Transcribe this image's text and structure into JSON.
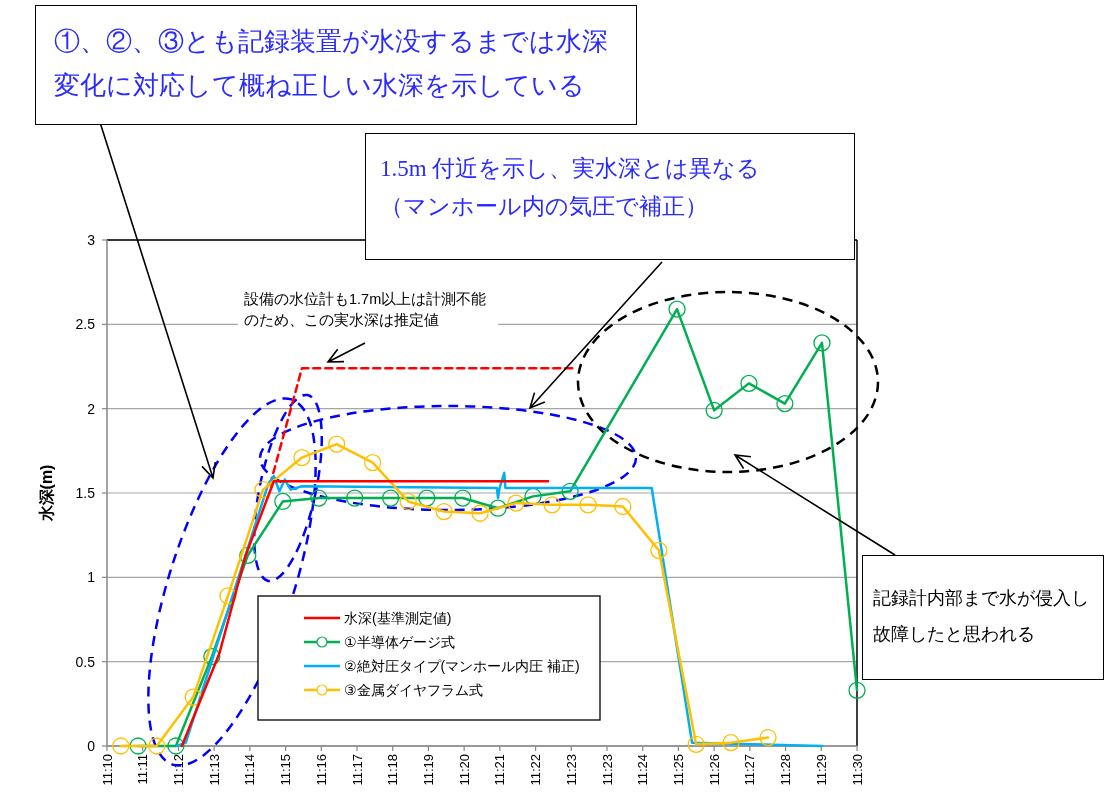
{
  "chart_data": {
    "type": "line",
    "ylabel": "水深(m)",
    "xlim": [
      11.1743,
      11.4998
    ],
    "xticks": [
      {
        "value": 11.1743,
        "label": "11:10"
      },
      {
        "value": 11.1898,
        "label": "11:11"
      },
      {
        "value": 11.2053,
        "label": "11:12"
      },
      {
        "value": 11.2208,
        "label": "11:13"
      },
      {
        "value": 11.2363,
        "label": "11:14"
      },
      {
        "value": 11.2518,
        "label": "11:15"
      },
      {
        "value": 11.2673,
        "label": "11:16"
      },
      {
        "value": 11.2828,
        "label": "11:17"
      },
      {
        "value": 11.2983,
        "label": "11:18"
      },
      {
        "value": 11.3138,
        "label": "11:19"
      },
      {
        "value": 11.3293,
        "label": "11:20"
      },
      {
        "value": 11.3448,
        "label": "11:21"
      },
      {
        "value": 11.3603,
        "label": "11:22"
      },
      {
        "value": 11.3758,
        "label": "11:23"
      },
      {
        "value": 11.3913,
        "label": "11:23"
      },
      {
        "value": 11.4068,
        "label": "11:24"
      },
      {
        "value": 11.4223,
        "label": "11:25"
      },
      {
        "value": 11.4378,
        "label": "11:26"
      },
      {
        "value": 11.4533,
        "label": "11:27"
      },
      {
        "value": 11.4688,
        "label": "11:28"
      },
      {
        "value": 11.4843,
        "label": "11:29"
      },
      {
        "value": 11.4998,
        "label": "11:30"
      }
    ],
    "ylim": [
      0,
      3
    ],
    "yticks": [
      0,
      0.5,
      1,
      1.5,
      2,
      2.5,
      3
    ],
    "grid": "y",
    "legend": "bottom left",
    "series": [
      {
        "name": "水深(基準測定値)",
        "color": "#ff0000",
        "marker": "none",
        "line_style": "solid",
        "x": [
          11.2068,
          11.2231,
          11.2345,
          11.2467,
          11.3657
        ],
        "values": [
          0,
          0.55,
          1.13,
          1.57,
          1.57
        ]
      },
      {
        "color": "#ff0000",
        "marker": "none",
        "line_style": "dashed",
        "x": [
          11.2451,
          11.2589,
          11.3765
        ],
        "values": [
          1.55,
          2.24,
          2.24
        ]
      },
      {
        "name": "①半導体ゲージ式",
        "color": "#00b050",
        "marker": "circle",
        "line_style": "solid",
        "x": [
          11.1878,
          11.2042,
          11.2198,
          11.2354,
          11.2506,
          11.2662,
          11.2818,
          11.2974,
          11.3131,
          11.3287,
          11.344,
          11.3592,
          11.3753,
          11.4217,
          11.4378,
          11.4529,
          11.4685,
          11.4846,
          11.4998
        ],
        "values": [
          0,
          0,
          0.53,
          1.13,
          1.45,
          1.47,
          1.47,
          1.47,
          1.47,
          1.47,
          1.41,
          1.48,
          1.51,
          2.59,
          1.99,
          2.15,
          2.03,
          2.39,
          0.33
        ]
      },
      {
        "name": "②絶対圧タイプ(マンホール内圧 補正)",
        "color": "#00b0f0",
        "marker": "none",
        "line_style": "solid",
        "x": [
          11.2047,
          11.2085,
          11.2442,
          11.2467,
          11.2491,
          11.2515,
          11.254,
          11.2589,
          11.3435,
          11.344,
          11.3447,
          11.3467,
          11.3472,
          11.4107,
          11.4282,
          11.4846
        ],
        "values": [
          0,
          0.02,
          1.55,
          1.6,
          1.51,
          1.58,
          1.52,
          1.54,
          1.53,
          1.47,
          1.53,
          1.62,
          1.53,
          1.53,
          0.02,
          0
        ]
      },
      {
        "name": "③金属ダイヤフラム式",
        "color": "#ffc000",
        "marker": "circle",
        "line_style": "solid",
        "x": [
          11.1803,
          11.1959,
          11.2117,
          11.2268,
          11.242,
          11.2589,
          11.274,
          11.2896,
          11.305,
          11.3206,
          11.3362,
          11.3518,
          11.3675,
          11.3831,
          11.3982,
          11.4138,
          11.43,
          11.4451,
          11.4612
        ],
        "values": [
          0,
          0,
          0.29,
          0.89,
          1.52,
          1.71,
          1.79,
          1.68,
          1.45,
          1.39,
          1.38,
          1.44,
          1.43,
          1.43,
          1.42,
          1.16,
          0.01,
          0.02,
          0.05
        ]
      }
    ],
    "annotations": [
      "①、②、③とも記録装置が水没するまでは水深変化に対応して概ね正しい水深を示している",
      "1.5m 付近を示し、実水深とは異なる（マンホール内の気圧で補正）",
      "設備の水位計も1.7m以上は計測不能のため、この実水深は推定値",
      "記録計内部まで水が侵入し故障したと思われる"
    ]
  }
}
